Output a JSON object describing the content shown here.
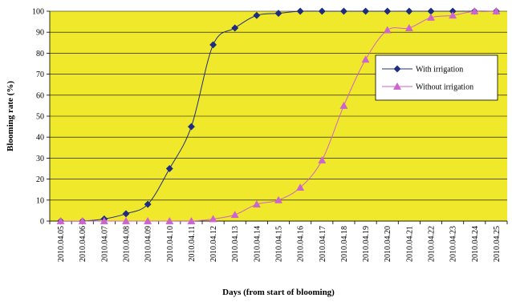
{
  "chart_data": {
    "type": "line",
    "xlabel": "Days (from start of blooming)",
    "ylabel": "Blooming rate (%)",
    "ylim": [
      0,
      100
    ],
    "yticks": [
      0,
      10,
      20,
      30,
      40,
      50,
      60,
      70,
      80,
      90,
      100
    ],
    "grid": "horizontal",
    "legend_position": "right",
    "plot_background": "#F0E82A",
    "categories": [
      "2010.04.05",
      "2010.04.06",
      "2010.04.07",
      "2010.04.08",
      "2010.04.09",
      "2010.04.10",
      "2010.04.11",
      "2010.04.12",
      "2010.04.13",
      "2010.04.14",
      "2010.04.15",
      "2010.04.16",
      "2010.04.17",
      "2010.04.18",
      "2010.04.19",
      "2010.04.20",
      "2010.04.21",
      "2010.04.22",
      "2010.04.23",
      "2010.04.24",
      "2010.04.25"
    ],
    "series": [
      {
        "name": "With irrigation",
        "color": "#1F2D80",
        "marker": "diamond",
        "values": [
          0,
          0,
          1,
          3.5,
          8,
          25,
          45,
          84,
          92,
          98,
          99,
          100,
          100,
          100,
          100,
          100,
          100,
          100,
          100,
          100,
          100
        ]
      },
      {
        "name": "Without irrigation",
        "color": "#CC66CC",
        "marker": "triangle",
        "values": [
          0,
          0,
          0,
          0,
          0,
          0,
          0,
          1,
          3,
          8,
          10,
          16,
          29,
          55,
          77,
          91,
          92,
          97,
          98,
          100,
          100
        ]
      }
    ]
  }
}
